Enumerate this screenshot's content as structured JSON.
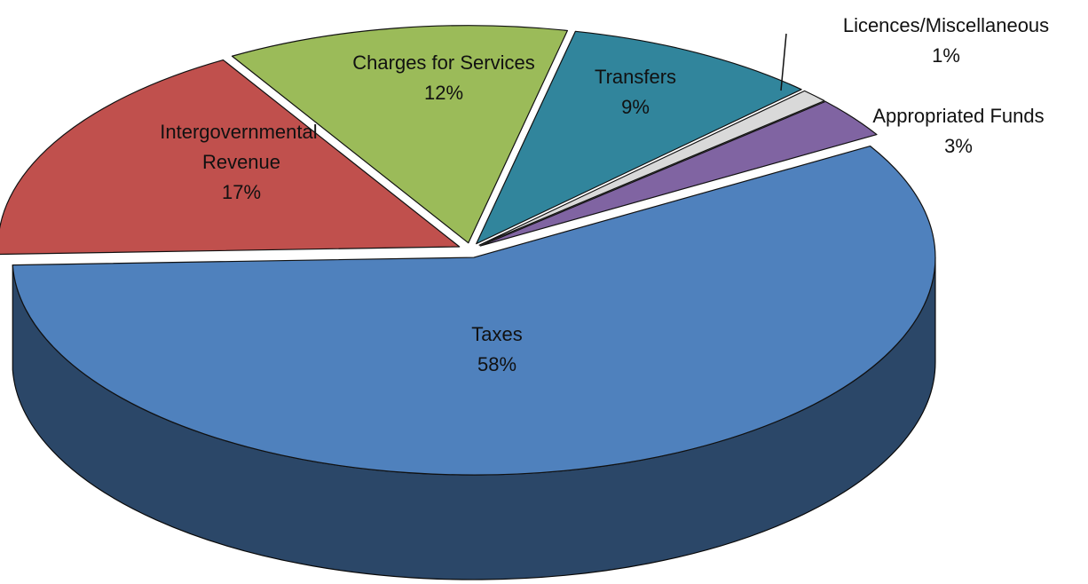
{
  "chart_data": {
    "type": "pie",
    "categories": [
      "Taxes",
      "Intergovernmental Revenue",
      "Charges for Services",
      "Transfers",
      "Licences/Miscellaneous",
      "Appropriated Funds"
    ],
    "values": [
      58,
      17,
      12,
      9,
      1,
      3
    ],
    "value_labels": [
      "58%",
      "17%",
      "12%",
      "9%",
      "1%",
      "3%"
    ],
    "colors": [
      "#4f81bd",
      "#c0504d",
      "#9bbb59",
      "#31859c",
      "#d9d9d9",
      "#8064a2"
    ]
  }
}
